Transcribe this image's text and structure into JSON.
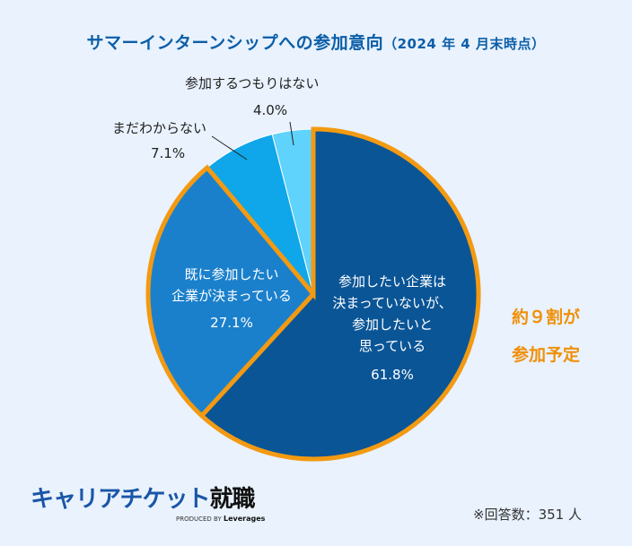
{
  "title": {
    "main": "サマーインターンシップへの参加意向",
    "sub": "（2024 年 4 月末時点）"
  },
  "chart_data": {
    "type": "pie",
    "start": "top",
    "direction": "clockwise",
    "slices": [
      {
        "label": "参加したい企業は決まっていないが、参加したいと思っている",
        "label_lines": [
          "参加したい企業は",
          "決まっていないが、",
          "参加したいと",
          "思っている"
        ],
        "value": 61.8,
        "value_label": "61.8%",
        "color": "#0a5596",
        "highlighted": true
      },
      {
        "label": "既に参加したい企業が決まっている",
        "label_lines": [
          "既に参加したい",
          "企業が決まっている"
        ],
        "value": 27.1,
        "value_label": "27.1%",
        "color": "#1b80cc",
        "highlighted": true
      },
      {
        "label": "まだわからない",
        "value": 7.1,
        "value_label": "7.1%",
        "color": "#0fa6ea",
        "highlighted": false
      },
      {
        "label": "参加するつもりはない",
        "value": 4.0,
        "value_label": "4.0%",
        "color": "#5fd3fb",
        "highlighted": false
      }
    ],
    "highlight_color": "#f39a12",
    "callout_lines": [
      "約９割が",
      "参加予定"
    ]
  },
  "logo": {
    "brand": "キャリアチケット",
    "suffix": "就職",
    "produced_by": "PRODUCED BY",
    "company": "Leverages"
  },
  "note": "※回答数：351 人"
}
